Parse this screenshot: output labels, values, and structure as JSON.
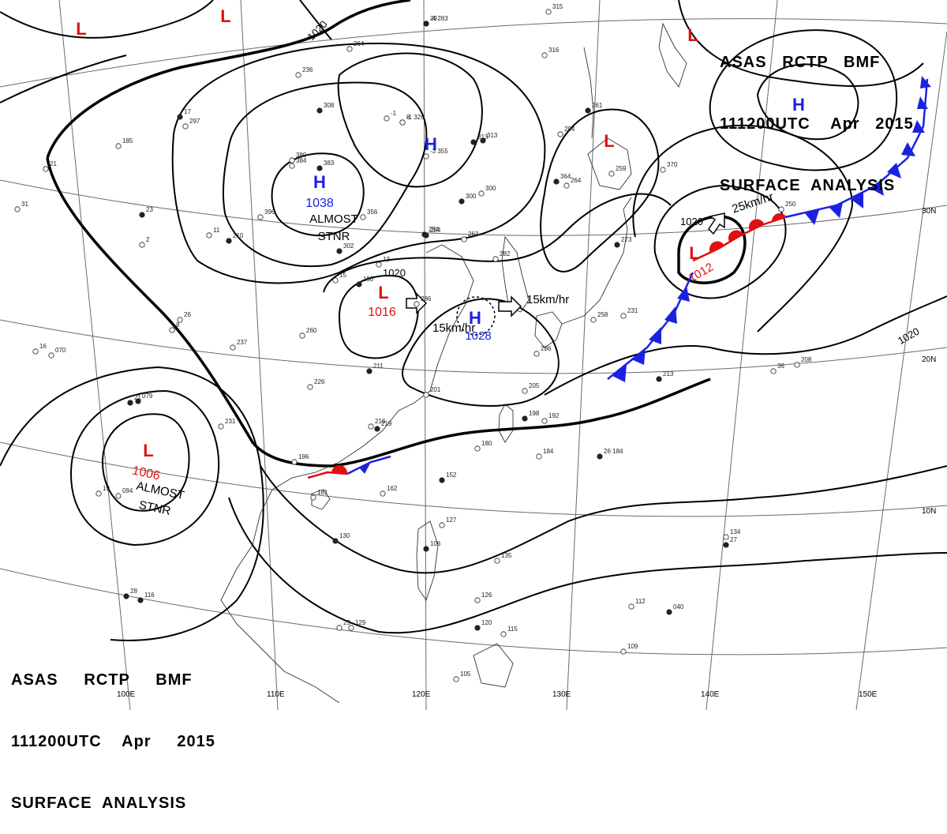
{
  "header": {
    "line1_parts": [
      "ASAS",
      "RCTP",
      "BMF"
    ],
    "line2_parts": [
      "111200UTC",
      "Apr",
      "2015"
    ],
    "line3": "SURFACE  ANALYSIS"
  },
  "colors": {
    "high": "#1a22e0",
    "low": "#e01010",
    "cold_front": "#1a22e0",
    "warm_front": "#e01010",
    "isobar": "#000000",
    "grid": "#555555"
  },
  "pressure_centers": [
    {
      "type": "H",
      "value": "1038",
      "note": "ALMOST STNR"
    },
    {
      "type": "H",
      "value": "",
      "note": ""
    },
    {
      "type": "H",
      "value": "",
      "note": ""
    },
    {
      "type": "H",
      "value": "1028",
      "note": ""
    },
    {
      "type": "L",
      "value": "1016",
      "note": ""
    },
    {
      "type": "L",
      "value": "1012",
      "note": ""
    },
    {
      "type": "L",
      "value": "1006",
      "note": "ALMOST STNR"
    },
    {
      "type": "L",
      "value": "",
      "note": ""
    },
    {
      "type": "L",
      "value": "",
      "note": ""
    },
    {
      "type": "L",
      "value": "",
      "note": ""
    },
    {
      "type": "L",
      "value": "",
      "note": ""
    }
  ],
  "motions": [
    "15km/hr",
    "15km/hr",
    "25km/hr"
  ],
  "isobar_labels": [
    "1020",
    "1020",
    "1020",
    "1020"
  ],
  "longitude_labels": [
    "100E",
    "110E",
    "120E",
    "130E",
    "140E",
    "150E"
  ],
  "latitude_labels": [
    "30N",
    "20N",
    "10N"
  ],
  "stations": [
    "-4 283",
    "-1 326",
    "-3 355",
    "313",
    "300",
    "384",
    "364",
    "236",
    "264",
    "308",
    "297",
    "380",
    "383",
    "11",
    "-1",
    "17",
    "185",
    "21",
    "23",
    "2",
    "8",
    "302",
    "356",
    "396",
    "254",
    "263",
    "282",
    "190",
    "15",
    "13",
    "254",
    "260",
    "226",
    "211",
    "216",
    "205",
    "198",
    "192",
    "184",
    "26 184",
    "180",
    "162",
    "152",
    "181",
    "196",
    "130",
    "129",
    "127",
    "106",
    "135",
    "126",
    "120",
    "115",
    "105",
    "116",
    "109",
    "112",
    "040",
    "134",
    "070",
    "079",
    "094",
    "208",
    "213",
    "231",
    "201",
    "219",
    "264",
    "259",
    "261",
    "286",
    "294",
    "313",
    "316",
    "315",
    "300",
    "250",
    "370",
    "273",
    "258",
    "286",
    "210",
    "237",
    "231",
    "21",
    "19",
    "16",
    "28",
    "31",
    "36",
    "27",
    "23",
    "26",
    "29",
    "8"
  ]
}
